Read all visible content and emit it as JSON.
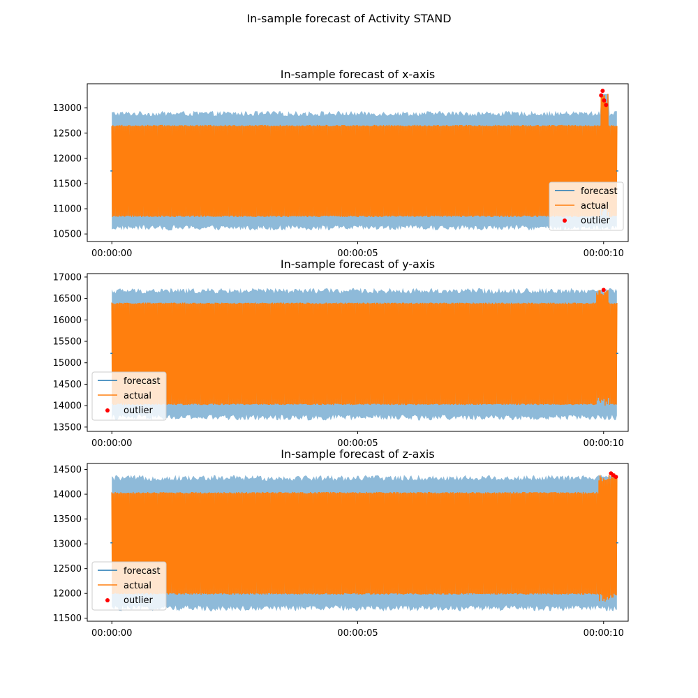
{
  "suptitle": "In-sample forecast of Activity STAND",
  "colors": {
    "forecast": "#1f77b4",
    "actual": "#ff7f0e",
    "band": "#8ebad9",
    "outlier": "#ff0000"
  },
  "legend_labels": [
    "forecast",
    "actual",
    "outlier"
  ],
  "chart_data": [
    {
      "type": "line",
      "title": "In-sample forecast of x-axis",
      "x_ticks": [
        "00:00:00",
        "00:00:05",
        "00:00:10"
      ],
      "x_range_seconds": [
        -0.5,
        10.5
      ],
      "series_x_range_seconds": [
        0.0,
        10.27
      ],
      "y_ticks": [
        10500,
        11000,
        11500,
        12000,
        12500,
        13000
      ],
      "ylim": [
        10350,
        13480
      ],
      "series": [
        {
          "name": "forecast",
          "kind": "line",
          "baseline": 11750
        },
        {
          "name": "actual",
          "kind": "oscillation",
          "low": 10850,
          "high": 12650
        },
        {
          "name": "band",
          "kind": "interval",
          "low": 10620,
          "high": 12890
        }
      ],
      "anomaly_region": {
        "start": 9.93,
        "end": 10.1,
        "low": 11200,
        "high": 13340
      },
      "outliers": [
        {
          "x": 9.95,
          "y": 13250
        },
        {
          "x": 9.98,
          "y": 13340
        },
        {
          "x": 10.01,
          "y": 13150
        },
        {
          "x": 10.05,
          "y": 13060
        }
      ],
      "legend": "lower right"
    },
    {
      "type": "line",
      "title": "In-sample forecast of y-axis",
      "x_ticks": [
        "00:00:00",
        "00:00:05",
        "00:00:10"
      ],
      "x_range_seconds": [
        -0.5,
        10.5
      ],
      "series_x_range_seconds": [
        0.0,
        10.27
      ],
      "y_ticks": [
        13500,
        14000,
        14500,
        15000,
        15500,
        16000,
        16500,
        17000
      ],
      "ylim": [
        13400,
        17080
      ],
      "series": [
        {
          "name": "forecast",
          "kind": "line",
          "baseline": 15220
        },
        {
          "name": "actual",
          "kind": "oscillation",
          "low": 14030,
          "high": 16390
        },
        {
          "name": "band",
          "kind": "interval",
          "low": 13720,
          "high": 16680
        }
      ],
      "anomaly_region": {
        "start": 9.85,
        "end": 10.1,
        "low": 14250,
        "high": 16700
      },
      "outliers": [
        {
          "x": 10.0,
          "y": 16700
        }
      ],
      "legend": "lower left"
    },
    {
      "type": "line",
      "title": "In-sample forecast of z-axis",
      "x_ticks": [
        "00:00:00",
        "00:00:05",
        "00:00:10"
      ],
      "x_range_seconds": [
        -0.5,
        10.5
      ],
      "series_x_range_seconds": [
        0.0,
        10.27
      ],
      "y_ticks": [
        11500,
        12000,
        12500,
        13000,
        13500,
        14000,
        14500
      ],
      "ylim": [
        11440,
        14620
      ],
      "series": [
        {
          "name": "forecast",
          "kind": "line",
          "baseline": 13020
        },
        {
          "name": "actual",
          "kind": "oscillation",
          "low": 11990,
          "high": 14030
        },
        {
          "name": "band",
          "kind": "interval",
          "low": 11700,
          "high": 14330
        }
      ],
      "anomaly_region": {
        "start": 9.9,
        "end": 10.27,
        "low": 11800,
        "high": 14420
      },
      "outliers": [
        {
          "x": 10.15,
          "y": 14420
        },
        {
          "x": 10.2,
          "y": 14380
        },
        {
          "x": 10.25,
          "y": 14350
        }
      ],
      "legend": "lower left"
    }
  ]
}
